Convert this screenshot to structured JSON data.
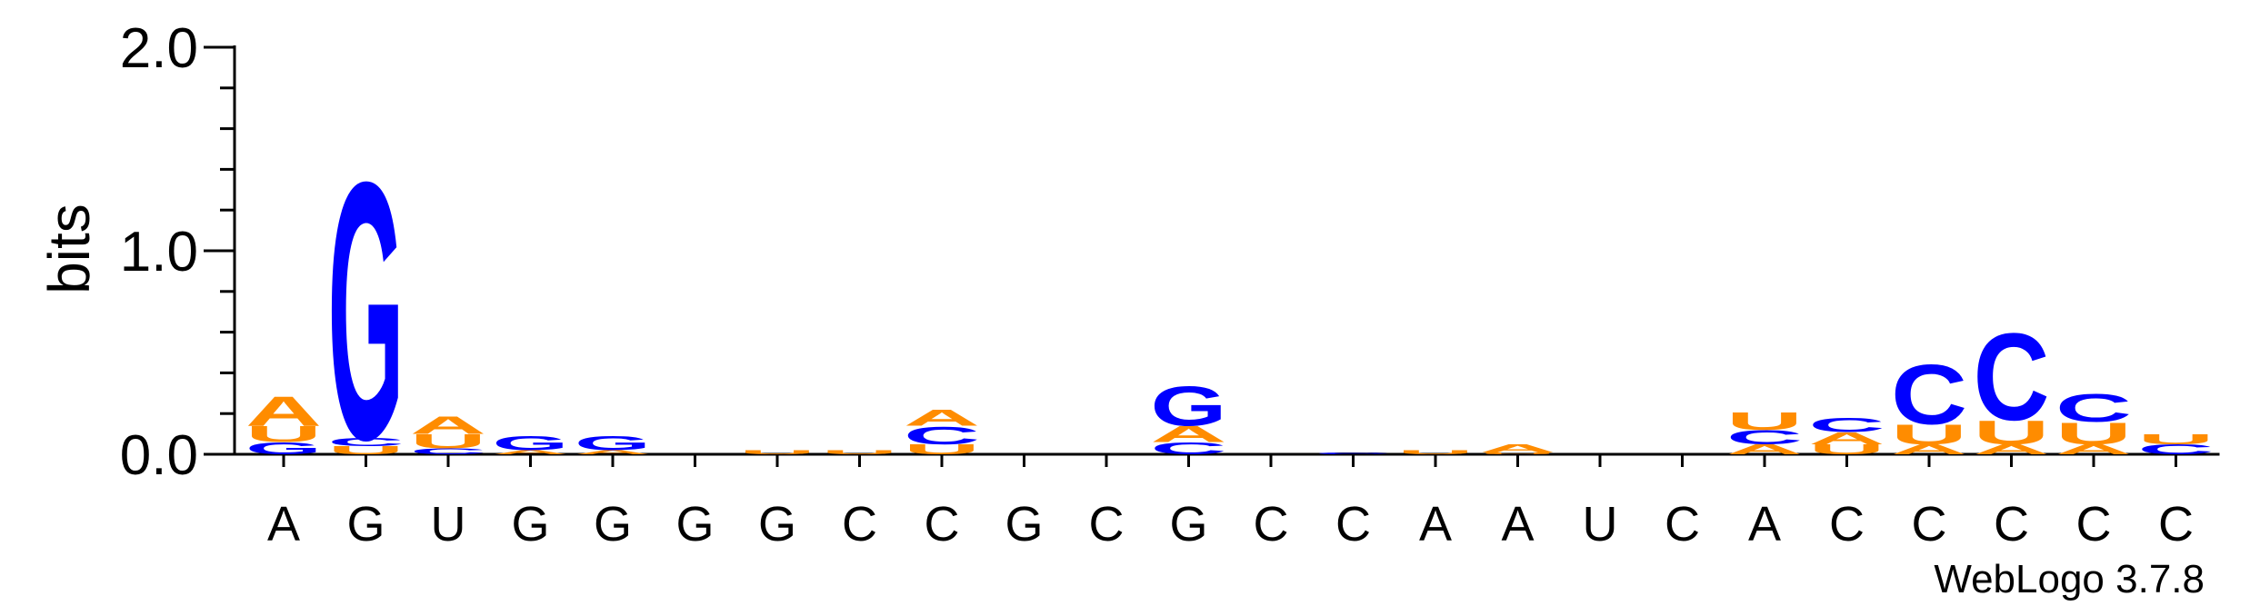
{
  "chart_data": {
    "type": "sequence-logo",
    "ylabel": "bits",
    "ylim": [
      0,
      2.0
    ],
    "yticks": [
      {
        "value": 0.0,
        "label": "0.0"
      },
      {
        "value": 1.0,
        "label": "1.0"
      },
      {
        "value": 2.0,
        "label": "2.0"
      }
    ],
    "minor_tick_step": 0.2,
    "x_labels": [
      "A",
      "G",
      "U",
      "G",
      "G",
      "G",
      "G",
      "C",
      "C",
      "G",
      "C",
      "G",
      "C",
      "C",
      "A",
      "A",
      "U",
      "C",
      "A",
      "C",
      "C",
      "C",
      "C",
      "C"
    ],
    "colors": {
      "A": "#ff8c00",
      "U": "#ff8c00",
      "G": "#0000ff",
      "C": "#0000ff"
    },
    "stacks": [
      [
        {
          "letter": "G",
          "bits": 0.06
        },
        {
          "letter": "U",
          "bits": 0.08
        },
        {
          "letter": "A",
          "bits": 0.15
        }
      ],
      [
        {
          "letter": "U",
          "bits": 0.04
        },
        {
          "letter": "C",
          "bits": 0.04
        },
        {
          "letter": "G",
          "bits": 1.3
        }
      ],
      [
        {
          "letter": "C",
          "bits": 0.03
        },
        {
          "letter": "U",
          "bits": 0.07
        },
        {
          "letter": "A",
          "bits": 0.09
        }
      ],
      [
        {
          "letter": "A",
          "bits": 0.02
        },
        {
          "letter": "G",
          "bits": 0.07
        }
      ],
      [
        {
          "letter": "A",
          "bits": 0.02
        },
        {
          "letter": "G",
          "bits": 0.07
        }
      ],
      [],
      [
        {
          "letter": "U",
          "bits": 0.02
        }
      ],
      [
        {
          "letter": "U",
          "bits": 0.02
        }
      ],
      [
        {
          "letter": "U",
          "bits": 0.05
        },
        {
          "letter": "C",
          "bits": 0.09
        },
        {
          "letter": "A",
          "bits": 0.08
        }
      ],
      [],
      [],
      [
        {
          "letter": "C",
          "bits": 0.06
        },
        {
          "letter": "A",
          "bits": 0.08
        },
        {
          "letter": "G",
          "bits": 0.2
        }
      ],
      [],
      [
        {
          "letter": "C",
          "bits": 0.01
        }
      ],
      [
        {
          "letter": "U",
          "bits": 0.02
        }
      ],
      [
        {
          "letter": "U",
          "bits": 0.01
        },
        {
          "letter": "A",
          "bits": 0.04
        }
      ],
      [],
      [],
      [
        {
          "letter": "A",
          "bits": 0.05
        },
        {
          "letter": "C",
          "bits": 0.07
        },
        {
          "letter": "U",
          "bits": 0.09
        }
      ],
      [
        {
          "letter": "U",
          "bits": 0.05
        },
        {
          "letter": "A",
          "bits": 0.06
        },
        {
          "letter": "C",
          "bits": 0.07
        }
      ],
      [
        {
          "letter": "A",
          "bits": 0.05
        },
        {
          "letter": "U",
          "bits": 0.1
        },
        {
          "letter": "C",
          "bits": 0.3
        }
      ],
      [
        {
          "letter": "A",
          "bits": 0.05
        },
        {
          "letter": "U",
          "bits": 0.12
        },
        {
          "letter": "C",
          "bits": 0.44
        }
      ],
      [
        {
          "letter": "A",
          "bits": 0.05
        },
        {
          "letter": "U",
          "bits": 0.11
        },
        {
          "letter": "C",
          "bits": 0.14
        }
      ],
      [
        {
          "letter": "C",
          "bits": 0.05
        },
        {
          "letter": "U",
          "bits": 0.05
        }
      ]
    ],
    "credit": "WebLogo 3.7.8"
  }
}
